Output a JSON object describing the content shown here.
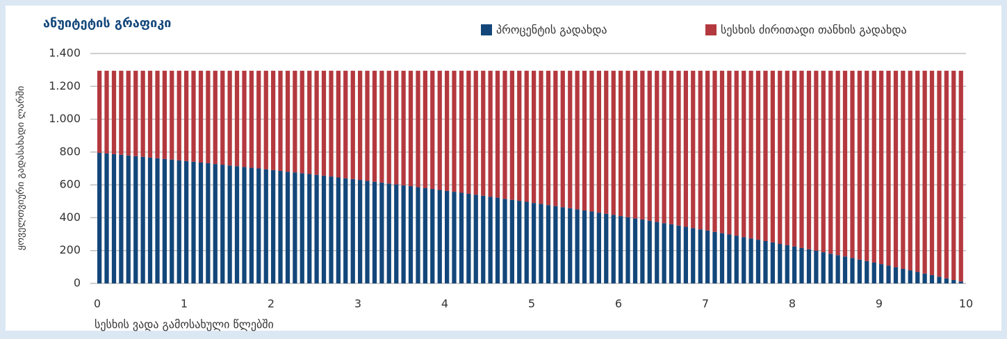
{
  "chart_data": {
    "type": "stacked_bar",
    "title": "ანუიტეტის გრაფიკი",
    "x_label": "სესხის ვადა გამოსახული წლებში",
    "y_label": "ყოველთვიური გადასახადი ლარში",
    "legend": "top-right",
    "grid": true,
    "xlim": [
      0,
      10
    ],
    "xticks": [
      0,
      1,
      2,
      3,
      4,
      5,
      6,
      7,
      8,
      9,
      10
    ],
    "ylim": [
      0,
      1400
    ],
    "yticks": [
      0,
      200,
      400,
      600,
      800,
      {
        "value": 1000,
        "label": "1.000"
      },
      {
        "value": 1200,
        "label": "1.200"
      },
      {
        "value": 1400,
        "label": "1.400"
      }
    ],
    "x": [
      0,
      0.083,
      0.167,
      0.25,
      0.333,
      0.417,
      0.5,
      0.583,
      0.667,
      0.75,
      0.833,
      0.917,
      1,
      1.083,
      1.167,
      1.25,
      1.333,
      1.417,
      1.5,
      1.583,
      1.667,
      1.75,
      1.833,
      1.917,
      2,
      2.083,
      2.167,
      2.25,
      2.333,
      2.417,
      2.5,
      2.583,
      2.667,
      2.75,
      2.833,
      2.917,
      3,
      3.083,
      3.167,
      3.25,
      3.333,
      3.417,
      3.5,
      3.583,
      3.667,
      3.75,
      3.833,
      3.917,
      4,
      4.083,
      4.167,
      4.25,
      4.333,
      4.417,
      4.5,
      4.583,
      4.667,
      4.75,
      4.833,
      4.917,
      5,
      5.083,
      5.167,
      5.25,
      5.333,
      5.417,
      5.5,
      5.583,
      5.667,
      5.75,
      5.833,
      5.917,
      6,
      6.083,
      6.167,
      6.25,
      6.333,
      6.417,
      6.5,
      6.583,
      6.667,
      6.75,
      6.833,
      6.917,
      7,
      7.083,
      7.167,
      7.25,
      7.333,
      7.417,
      7.5,
      7.583,
      7.667,
      7.75,
      7.833,
      7.917,
      8,
      8.083,
      8.167,
      8.25,
      8.333,
      8.417,
      8.5,
      8.583,
      8.667,
      8.75,
      8.833,
      8.917,
      9,
      9.083,
      9.167,
      9.25,
      9.333,
      9.417,
      9.5,
      9.583,
      9.667,
      9.75,
      9.833,
      9.917
    ],
    "series": [
      {
        "name": "პროცენტის გადახდა",
        "color": "#13477a",
        "values": [
          795,
          791,
          787,
          783,
          779,
          775,
          771,
          766,
          762,
          758,
          754,
          749,
          745,
          741,
          736,
          732,
          727,
          723,
          718,
          714,
          709,
          704,
          700,
          695,
          690,
          685,
          680,
          676,
          671,
          666,
          661,
          656,
          651,
          645,
          640,
          635,
          630,
          624,
          619,
          614,
          608,
          603,
          597,
          592,
          586,
          581,
          575,
          569,
          563,
          558,
          552,
          546,
          540,
          534,
          528,
          522,
          515,
          509,
          503,
          497,
          490,
          484,
          477,
          471,
          464,
          458,
          451,
          444,
          438,
          431,
          424,
          417,
          410,
          403,
          396,
          389,
          382,
          374,
          367,
          360,
          352,
          345,
          337,
          329,
          322,
          314,
          306,
          298,
          290,
          282,
          274,
          266,
          258,
          250,
          241,
          233,
          225,
          216,
          208,
          199,
          190,
          181,
          172,
          164,
          155,
          145,
          136,
          127,
          118,
          108,
          99,
          89,
          80,
          70,
          60,
          51,
          41,
          31,
          21,
          11
        ]
      },
      {
        "name": "სესხის ძირითადი თანხის გადახდა",
        "color": "#b4393f",
        "values": [
          500,
          504,
          508,
          512,
          516,
          520,
          524,
          529,
          533,
          537,
          541,
          546,
          550,
          554,
          559,
          563,
          568,
          572,
          577,
          581,
          586,
          591,
          595,
          600,
          605,
          610,
          615,
          619,
          624,
          629,
          634,
          639,
          644,
          650,
          655,
          660,
          665,
          671,
          676,
          681,
          687,
          692,
          698,
          703,
          709,
          714,
          720,
          726,
          732,
          737,
          743,
          749,
          755,
          761,
          767,
          773,
          780,
          786,
          792,
          798,
          805,
          811,
          818,
          824,
          831,
          837,
          844,
          851,
          857,
          864,
          871,
          878,
          885,
          892,
          899,
          906,
          913,
          921,
          928,
          935,
          943,
          950,
          958,
          966,
          973,
          981,
          989,
          997,
          1005,
          1013,
          1021,
          1029,
          1037,
          1045,
          1054,
          1062,
          1070,
          1079,
          1087,
          1096,
          1105,
          1114,
          1123,
          1131,
          1140,
          1150,
          1159,
          1168,
          1177,
          1187,
          1196,
          1206,
          1215,
          1225,
          1235,
          1244,
          1254,
          1264,
          1274,
          1284
        ]
      }
    ]
  }
}
